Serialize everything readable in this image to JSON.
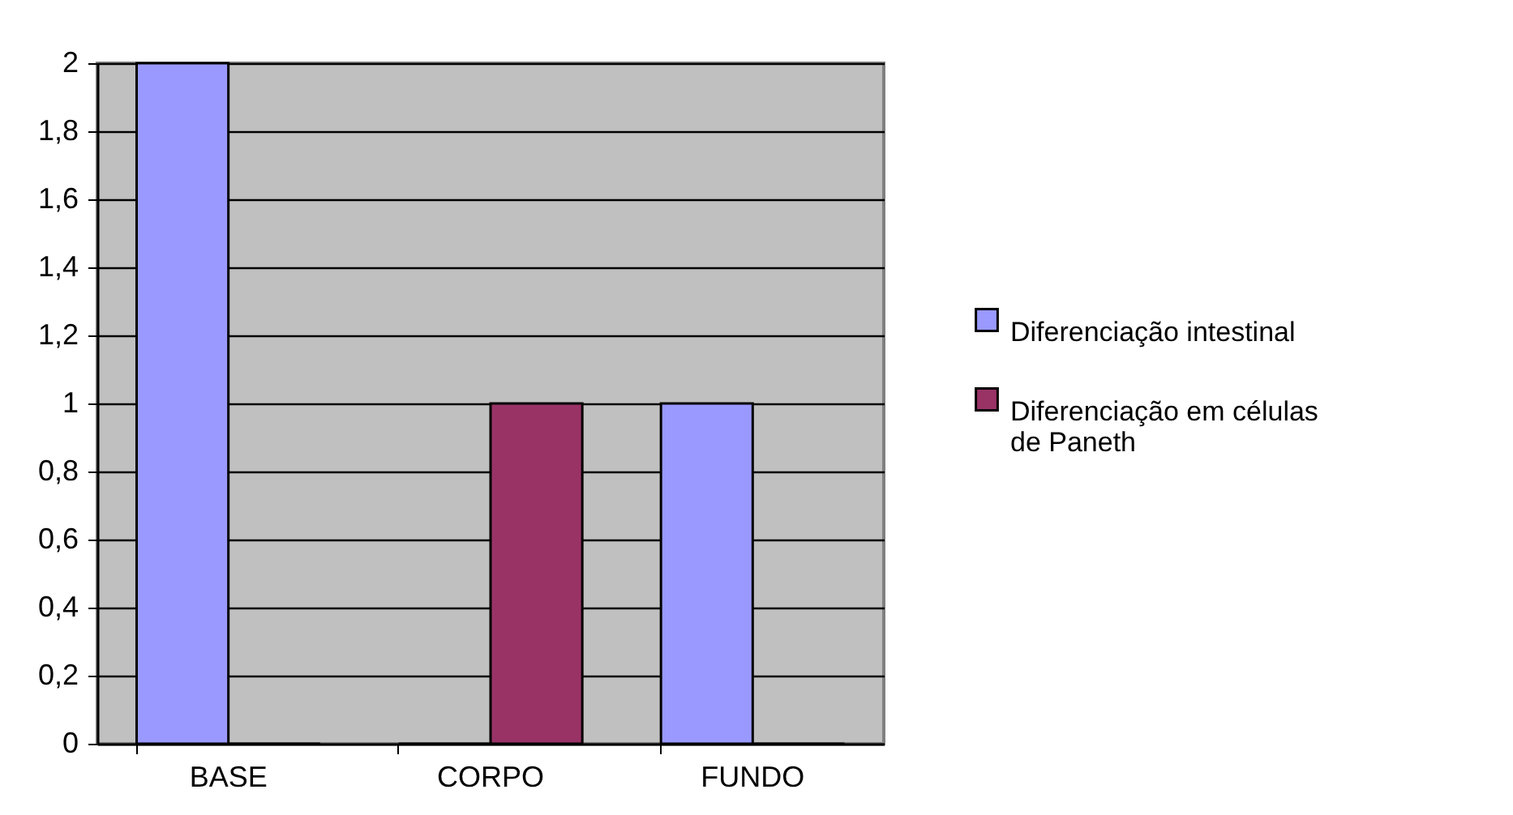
{
  "chart_data": {
    "type": "bar",
    "categories": [
      "BASE",
      "CORPO",
      "FUNDO"
    ],
    "series": [
      {
        "name": "Diferenciação intestinal",
        "color": "#9999ff",
        "values": [
          2,
          0,
          1
        ]
      },
      {
        "name": "Diferenciação em células de Paneth",
        "color": "#993366",
        "values": [
          0,
          1,
          0
        ]
      }
    ],
    "ylim": [
      0,
      2
    ],
    "yticks": [
      0,
      {
        "value": 0.2,
        "label": "0,2"
      },
      {
        "value": 0.4,
        "label": "0,4"
      },
      {
        "value": 0.6,
        "label": "0,6"
      },
      {
        "value": 0.8,
        "label": "0,8"
      },
      1,
      {
        "value": 1.2,
        "label": "1,2"
      },
      {
        "value": 1.4,
        "label": "1,4"
      },
      {
        "value": 1.6,
        "label": "1,6"
      },
      {
        "value": 1.8,
        "label": "1,8"
      },
      2
    ],
    "grid": "y",
    "legend": "right"
  }
}
